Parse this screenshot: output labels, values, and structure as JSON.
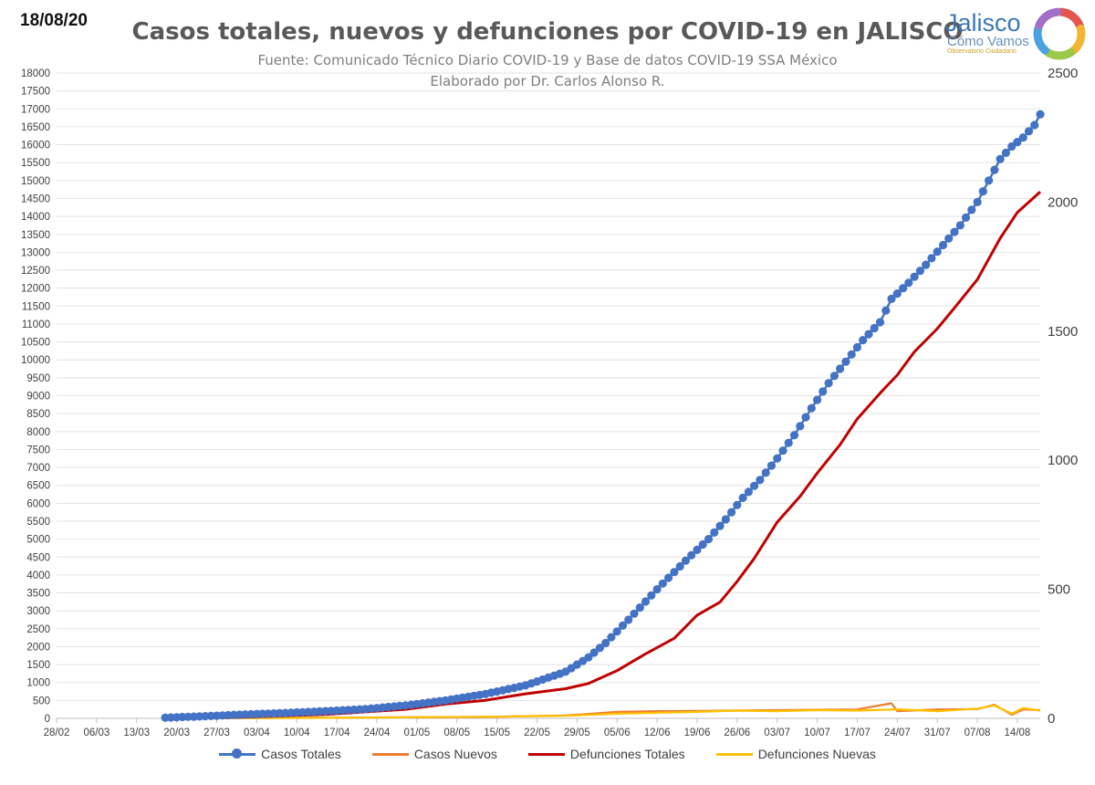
{
  "header": {
    "date": "18/08/20",
    "title": "Casos totales, nuevos y defunciones por COVID-19 en JALISCO",
    "subtitle": "Fuente: Comunicado Técnico Diario COVID-19 y Base de datos COVID-19 SSA México",
    "author": "Elaborado por Dr. Carlos Alonso R."
  },
  "logo": {
    "name": "Jalisco",
    "tagline": "Cómo Vamos",
    "small": "Observatorio Ciudadano",
    "ring_colors": [
      "#e5554f",
      "#f2b632",
      "#9cc94b",
      "#4aa3df",
      "#a46fc7"
    ]
  },
  "chart_data": {
    "type": "line",
    "title": "Casos totales, nuevos y defunciones por COVID-19 en JALISCO",
    "x_tick_labels": [
      "28/02",
      "06/03",
      "13/03",
      "20/03",
      "27/03",
      "03/04",
      "10/04",
      "17/04",
      "24/04",
      "01/05",
      "08/05",
      "15/05",
      "22/05",
      "29/05",
      "05/06",
      "12/06",
      "19/06",
      "26/06",
      "03/07",
      "10/07",
      "17/07",
      "24/07",
      "31/07",
      "07/08",
      "14/08"
    ],
    "x_range": [
      "28/02",
      "18/08"
    ],
    "y_left": {
      "min": 0,
      "max": 18000,
      "step": 500
    },
    "y_right": {
      "min": 0,
      "max": 2500,
      "step": 500
    },
    "grid": "horizontal",
    "legend_position": "bottom",
    "series": [
      {
        "name": "Casos Totales",
        "axis": "left",
        "color": "#4472c4",
        "markers": true,
        "start_date": "18/03",
        "points": [
          [
            "18/03",
            20
          ],
          [
            "25/03",
            60
          ],
          [
            "01/04",
            110
          ],
          [
            "08/04",
            150
          ],
          [
            "15/04",
            200
          ],
          [
            "22/04",
            260
          ],
          [
            "29/04",
            360
          ],
          [
            "06/05",
            500
          ],
          [
            "13/05",
            680
          ],
          [
            "20/05",
            920
          ],
          [
            "27/05",
            1300
          ],
          [
            "31/05",
            1700
          ],
          [
            "03/06",
            2100
          ],
          [
            "07/06",
            2750
          ],
          [
            "12/06",
            3600
          ],
          [
            "17/06",
            4400
          ],
          [
            "21/06",
            5000
          ],
          [
            "24/06",
            5550
          ],
          [
            "27/06",
            6150
          ],
          [
            "30/06",
            6650
          ],
          [
            "03/07",
            7250
          ],
          [
            "06/07",
            7900
          ],
          [
            "09/07",
            8650
          ],
          [
            "12/07",
            9350
          ],
          [
            "15/07",
            9950
          ],
          [
            "18/07",
            10550
          ],
          [
            "21/07",
            11050
          ],
          [
            "23/07",
            11700
          ],
          [
            "26/07",
            12150
          ],
          [
            "29/07",
            12650
          ],
          [
            "01/08",
            13200
          ],
          [
            "04/08",
            13750
          ],
          [
            "07/08",
            14400
          ],
          [
            "09/08",
            15000
          ],
          [
            "11/08",
            15600
          ],
          [
            "13/08",
            15950
          ],
          [
            "15/08",
            16200
          ],
          [
            "17/08",
            16550
          ],
          [
            "18/08",
            16850
          ]
        ]
      },
      {
        "name": "Casos Nuevos",
        "axis": "left",
        "color": "#ed7d31",
        "markers": false,
        "points": [
          [
            "18/03",
            5
          ],
          [
            "01/04",
            10
          ],
          [
            "15/04",
            15
          ],
          [
            "29/04",
            30
          ],
          [
            "13/05",
            40
          ],
          [
            "27/05",
            80
          ],
          [
            "05/06",
            180
          ],
          [
            "12/06",
            200
          ],
          [
            "19/06",
            210
          ],
          [
            "26/06",
            220
          ],
          [
            "03/07",
            230
          ],
          [
            "10/07",
            240
          ],
          [
            "17/07",
            250
          ],
          [
            "23/07",
            420
          ],
          [
            "24/07",
            200
          ],
          [
            "31/07",
            250
          ],
          [
            "07/08",
            260
          ],
          [
            "10/08",
            380
          ],
          [
            "13/08",
            100
          ],
          [
            "15/08",
            250
          ],
          [
            "18/08",
            230
          ]
        ]
      },
      {
        "name": "Defunciones Totales",
        "axis": "right",
        "color": "#c00000",
        "markers": false,
        "points": [
          [
            "18/03",
            0
          ],
          [
            "01/04",
            5
          ],
          [
            "15/04",
            15
          ],
          [
            "22/04",
            25
          ],
          [
            "29/04",
            35
          ],
          [
            "06/05",
            55
          ],
          [
            "13/05",
            70
          ],
          [
            "20/05",
            95
          ],
          [
            "27/05",
            115
          ],
          [
            "31/05",
            135
          ],
          [
            "05/06",
            185
          ],
          [
            "10/06",
            250
          ],
          [
            "15/06",
            310
          ],
          [
            "19/06",
            400
          ],
          [
            "23/06",
            450
          ],
          [
            "26/06",
            530
          ],
          [
            "29/06",
            620
          ],
          [
            "03/07",
            760
          ],
          [
            "07/07",
            860
          ],
          [
            "10/07",
            950
          ],
          [
            "14/07",
            1060
          ],
          [
            "17/07",
            1160
          ],
          [
            "21/07",
            1260
          ],
          [
            "24/07",
            1330
          ],
          [
            "27/07",
            1420
          ],
          [
            "31/07",
            1510
          ],
          [
            "03/08",
            1590
          ],
          [
            "07/08",
            1700
          ],
          [
            "11/08",
            1860
          ],
          [
            "14/08",
            1960
          ],
          [
            "18/08",
            2040
          ]
        ]
      },
      {
        "name": "Defunciones Nuevas",
        "axis": "right",
        "color": "#ffc000",
        "markers": false,
        "points": [
          [
            "18/03",
            0
          ],
          [
            "15/04",
            2
          ],
          [
            "13/05",
            6
          ],
          [
            "27/05",
            10
          ],
          [
            "05/06",
            18
          ],
          [
            "19/06",
            25
          ],
          [
            "26/06",
            30
          ],
          [
            "03/07",
            28
          ],
          [
            "10/07",
            32
          ],
          [
            "17/07",
            30
          ],
          [
            "24/07",
            35
          ],
          [
            "31/07",
            28
          ],
          [
            "07/08",
            38
          ],
          [
            "10/08",
            50
          ],
          [
            "13/08",
            18
          ],
          [
            "15/08",
            40
          ],
          [
            "18/08",
            30
          ]
        ]
      }
    ]
  }
}
